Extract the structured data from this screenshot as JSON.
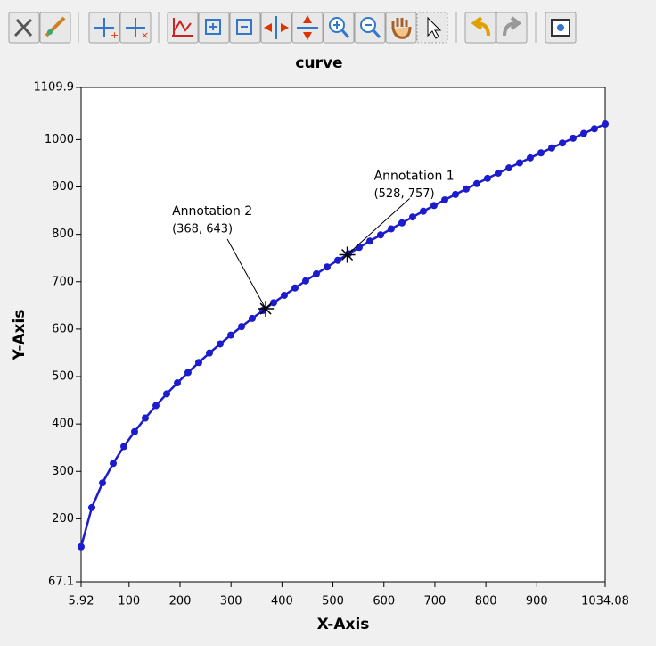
{
  "chart_data": {
    "type": "line",
    "title": "curve",
    "x_label": "X-Axis",
    "y_label": "Y-Axis",
    "x": [
      5.92,
      26.9,
      47.9,
      68.9,
      89.9,
      110.8,
      131.8,
      152.8,
      173.8,
      194.8,
      215.7,
      236.7,
      257.7,
      278.7,
      299.7,
      320.7,
      341.6,
      362.6,
      383.6,
      404.6,
      425.6,
      446.5,
      467.5,
      488.5,
      509.5,
      530.5,
      551.4,
      572.4,
      593.4,
      614.4,
      635.4,
      656.3,
      677.3,
      698.3,
      719.3,
      740.3,
      761.3,
      782.2,
      803.2,
      824.2,
      845.2,
      866.2,
      887.1,
      908.1,
      929.1,
      950.1,
      971.1,
      992.0,
      1013.0,
      1034.08
    ],
    "series": [
      {
        "color": "#1c1ccc",
        "values": [
          141.0,
          223.6,
          275.6,
          317.0,
          352.5,
          383.8,
          412.4,
          438.8,
          463.5,
          486.7,
          508.6,
          529.6,
          549.6,
          568.8,
          587.4,
          605.2,
          622.5,
          639.3,
          655.6,
          671.4,
          686.9,
          701.9,
          716.7,
          731.1,
          745.2,
          759.0,
          772.5,
          785.7,
          798.8,
          811.6,
          824.2,
          836.6,
          848.8,
          860.8,
          872.6,
          884.2,
          895.8,
          907.0,
          918.2,
          929.3,
          940.2,
          950.9,
          961.5,
          972.0,
          982.4,
          992.7,
          1002.9,
          1012.9,
          1022.8,
          1032.7
        ]
      }
    ],
    "xlim": [
      5.92,
      1034.08
    ],
    "xticks": [
      5.92,
      100,
      200,
      300,
      400,
      500,
      600,
      700,
      800,
      900,
      1034.08
    ],
    "ylim": [
      67.1,
      1109.9
    ],
    "yticks": [
      67.1,
      200,
      300,
      400,
      500,
      600,
      700,
      800,
      900,
      1000,
      1109.9
    ],
    "annotations": [
      {
        "label": "Annotation 1",
        "text": "(528, 757)",
        "x": 528,
        "y": 757
      },
      {
        "label": "Annotation 2",
        "text": "(368, 643)",
        "x": 368,
        "y": 643
      }
    ]
  }
}
